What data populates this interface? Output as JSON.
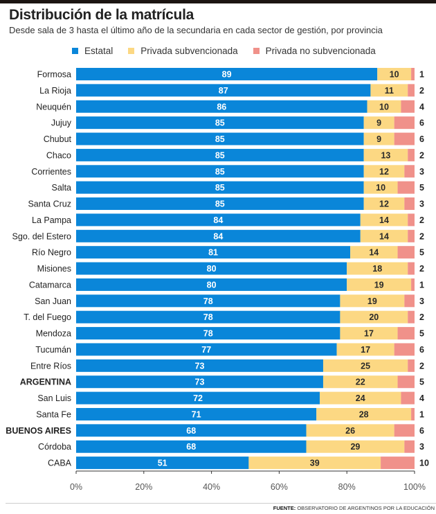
{
  "chart_data": {
    "type": "bar",
    "stacked": true,
    "orientation": "horizontal",
    "title": "Distribución de la matrícula",
    "subtitle": "Desde sala de 3 hasta el último año de la secundaria en cada sector de gestión, por provincia",
    "legend_position": "top",
    "categories": [
      "Formosa",
      "La Rioja",
      "Neuquén",
      "Jujuy",
      "Chubut",
      "Chaco",
      "Corrientes",
      "Salta",
      "Santa Cruz",
      "La Pampa",
      "Sgo. del Estero",
      "Río Negro",
      "Misiones",
      "Catamarca",
      "San Juan",
      "T. del Fuego",
      "Mendoza",
      "Tucumán",
      "Entre Ríos",
      "ARGENTINA",
      "San Luis",
      "Santa Fe",
      "BUENOS AIRES",
      "Córdoba",
      "CABA"
    ],
    "bold_categories": [
      "ARGENTINA",
      "BUENOS AIRES"
    ],
    "series": [
      {
        "name": "Estatal",
        "color": "#0a86d9",
        "values": [
          89,
          87,
          86,
          85,
          85,
          85,
          85,
          85,
          85,
          84,
          84,
          81,
          80,
          80,
          78,
          78,
          78,
          77,
          73,
          73,
          72,
          71,
          68,
          68,
          51
        ]
      },
      {
        "name": "Privada subvencionada",
        "color": "#fcd883",
        "values": [
          10,
          11,
          10,
          9,
          9,
          13,
          12,
          10,
          12,
          14,
          14,
          14,
          18,
          19,
          19,
          20,
          17,
          17,
          25,
          22,
          24,
          28,
          26,
          29,
          39
        ]
      },
      {
        "name": "Privada no subvencionada",
        "color": "#f0918a",
        "values": [
          1,
          2,
          4,
          6,
          6,
          2,
          3,
          5,
          3,
          2,
          2,
          5,
          2,
          1,
          3,
          2,
          5,
          6,
          2,
          5,
          4,
          1,
          6,
          3,
          10
        ]
      }
    ],
    "xlim": [
      0,
      100
    ],
    "xticks": [
      "0%",
      "20%",
      "40%",
      "60%",
      "80%",
      "100%"
    ],
    "grid": false
  },
  "source": {
    "label": "FUENTE:",
    "text": "OBSERVATORIO DE ARGENTINOS POR LA EDUCACIÓN"
  }
}
